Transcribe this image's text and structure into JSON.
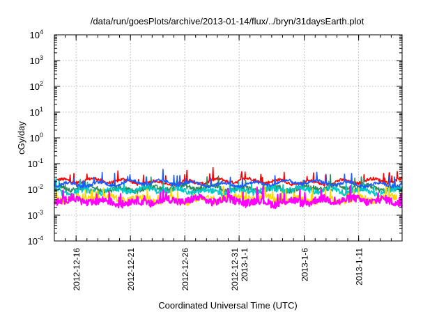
{
  "chart_data": {
    "type": "line",
    "title": "/data/run/goesPlots/archive/2013-01-14/flux/../bryn/31daysEarth.plot",
    "xlabel": "Coordinated Universal Time (UTC)",
    "ylabel": "cGy/day",
    "y_scale": "log",
    "ylim": [
      0.0001,
      10000
    ],
    "xlim": [
      "2012-12-14",
      "2013-01-15"
    ],
    "grid": true,
    "y_ticks": [
      {
        "base": "10",
        "exp": "-4",
        "value": 0.0001
      },
      {
        "base": "10",
        "exp": "-3",
        "value": 0.001
      },
      {
        "base": "10",
        "exp": "-2",
        "value": 0.01
      },
      {
        "base": "10",
        "exp": "-1",
        "value": 0.1
      },
      {
        "base": "10",
        "exp": "0",
        "value": 1
      },
      {
        "base": "10",
        "exp": "1",
        "value": 10
      },
      {
        "base": "10",
        "exp": "2",
        "value": 100
      },
      {
        "base": "10",
        "exp": "3",
        "value": 1000
      },
      {
        "base": "10",
        "exp": "4",
        "value": 10000
      }
    ],
    "x_ticks": [
      {
        "date": "2012-12-16",
        "lines": [
          "2012-12-16"
        ]
      },
      {
        "date": "2012-12-21",
        "lines": [
          "2012-12-21"
        ]
      },
      {
        "date": "2012-12-26",
        "lines": [
          "2012-12-26"
        ]
      },
      {
        "date": "2012-12-31",
        "lines": [
          "2012-12-31",
          "2013-1-1"
        ]
      },
      {
        "date": "2013-01-06",
        "lines": [
          "2013-1-6"
        ]
      },
      {
        "date": "2013-01-11",
        "lines": [
          "2013-1-11"
        ]
      }
    ],
    "series": [
      {
        "color": "#ff0000",
        "base": 0.02,
        "spread": 0.12
      },
      {
        "color": "#2e8b57",
        "base": 0.011,
        "spread": 0.2
      },
      {
        "color": "#00c8c8",
        "base": 0.009,
        "spread": 0.22
      },
      {
        "color": "#ffd700",
        "base": 0.0042,
        "spread": 0.26
      },
      {
        "color": "#ff00ff",
        "base": 0.0035,
        "spread": 0.3
      },
      {
        "color": "#1e5aff",
        "base": 0.017,
        "spread": 0.12
      }
    ],
    "frame_color": "#000000",
    "grid_color": "#a0a0a0"
  }
}
